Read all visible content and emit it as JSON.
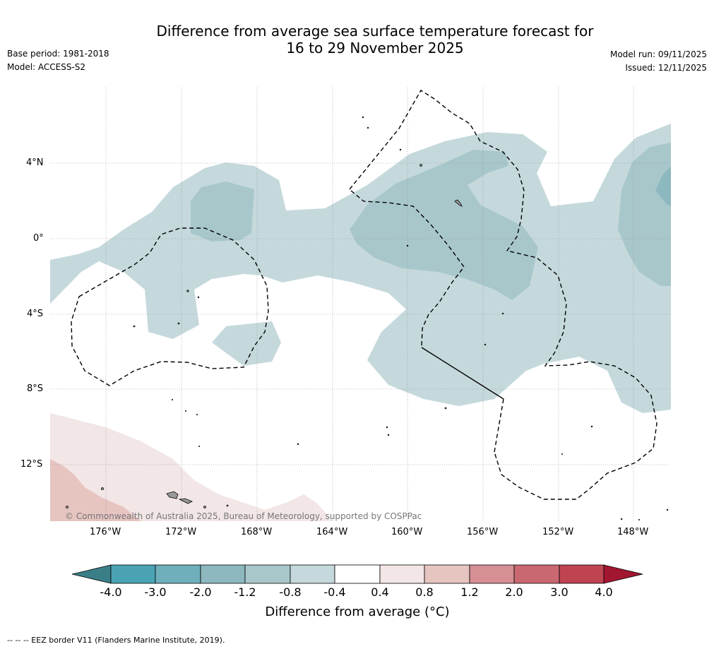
{
  "header": {
    "title_line1": "Difference from average sea surface temperature forecast for",
    "title_line2": "16 to 29 November 2025",
    "base_period": "Base period: 1981-2018",
    "model": "Model: ACCESS-S2",
    "model_run": "Model run: 09/11/2025",
    "issued": "Issued: 12/11/2025"
  },
  "map": {
    "lat_labels": [
      "4°N",
      "0°",
      "4°S",
      "8°S",
      "12°S"
    ],
    "lon_labels": [
      "176°W",
      "172°W",
      "168°W",
      "164°W",
      "160°W",
      "156°W",
      "152°W",
      "148°W"
    ],
    "copyright": "© Commonwealth of Australia 2025, Bureau of Meteorology, supported by COSPPac",
    "colors": {
      "anom_-1.2_-0.8": "#a8c7cb",
      "anom_-0.8_-0.4": "#c5d9dc",
      "anom_-2.0_-1.2": "#8db8bf",
      "anom_0.4_0.8": "#f2e6e6",
      "anom_0.8_1.2": "#e6c4c0",
      "land": "#999999",
      "eez": "#000000"
    }
  },
  "colorbar": {
    "ticks": [
      "-4.0",
      "-3.0",
      "-2.0",
      "-1.2",
      "-0.8",
      "-0.4",
      "0.4",
      "0.8",
      "1.2",
      "2.0",
      "3.0",
      "4.0"
    ],
    "colors": [
      "#3a7f87",
      "#4aa3b4",
      "#6eafbb",
      "#8db8bf",
      "#a8c7cb",
      "#c5d9dc",
      "#ffffff",
      "#f2e6e6",
      "#e6c4c0",
      "#d68f94",
      "#c96871",
      "#bf4452",
      "#a3162f"
    ],
    "label": "Difference from average (°C)"
  },
  "footer": {
    "eez_note": "--  --  -- EEZ border V11 (Flanders Marine Institute, 2019)."
  }
}
